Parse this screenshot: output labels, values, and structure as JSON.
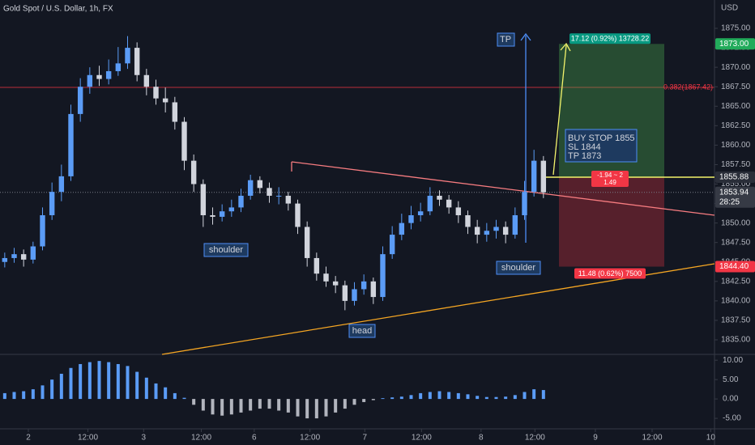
{
  "chart_data": {
    "type": "candlestick",
    "title": "Gold Spot / U.S. Dollar, 1h, FX",
    "currency": "USD",
    "up_color": "#5b9cf6",
    "down_color": "#d1d4dc",
    "candles": [
      [
        1845,
        1846.2,
        1844.3,
        1845.5
      ],
      [
        1845.5,
        1846.8,
        1844.9,
        1846
      ],
      [
        1846,
        1846.6,
        1844.4,
        1845.3
      ],
      [
        1845.3,
        1847.6,
        1844.8,
        1847
      ],
      [
        1847,
        1852,
        1846.5,
        1851
      ],
      [
        1851,
        1855.2,
        1850.4,
        1854
      ],
      [
        1854,
        1857.5,
        1852.8,
        1856
      ],
      [
        1856,
        1865.2,
        1855.4,
        1864
      ],
      [
        1864,
        1868.6,
        1863,
        1867.5
      ],
      [
        1867.5,
        1870,
        1866.6,
        1869
      ],
      [
        1869,
        1870.2,
        1867.6,
        1868.5
      ],
      [
        1868.5,
        1871,
        1867.8,
        1869.5
      ],
      [
        1869.5,
        1872.6,
        1868.9,
        1870.5
      ],
      [
        1870.5,
        1874,
        1869.8,
        1872.5
      ],
      [
        1872.5,
        1873.2,
        1868.2,
        1869
      ],
      [
        1869,
        1869.8,
        1866.4,
        1867.5
      ],
      [
        1867.5,
        1868.4,
        1865.2,
        1866
      ],
      [
        1866,
        1867.4,
        1864.2,
        1865.5
      ],
      [
        1865.5,
        1866.2,
        1862,
        1863
      ],
      [
        1863,
        1863.6,
        1856.8,
        1858
      ],
      [
        1858,
        1858.8,
        1854,
        1855
      ],
      [
        1855,
        1855.6,
        1849.5,
        1851
      ],
      [
        1851,
        1852,
        1849.8,
        1850.8
      ],
      [
        1850.8,
        1852.4,
        1850.2,
        1851.5
      ],
      [
        1851.5,
        1853,
        1850.8,
        1852
      ],
      [
        1852,
        1854.4,
        1851.4,
        1853.5
      ],
      [
        1853.5,
        1856.2,
        1853,
        1855.5
      ],
      [
        1855.5,
        1856,
        1853.8,
        1854.5
      ],
      [
        1854.5,
        1855.2,
        1852.6,
        1853.5
      ],
      [
        1853.5,
        1854.6,
        1852.4,
        1853.5
      ],
      [
        1853.5,
        1854,
        1851.6,
        1852.5
      ],
      [
        1852.5,
        1853,
        1848.6,
        1849.5
      ],
      [
        1849.5,
        1850.2,
        1844.4,
        1845.5
      ],
      [
        1845.5,
        1846.2,
        1842.6,
        1843.5
      ],
      [
        1843.5,
        1844.4,
        1841.8,
        1842.5
      ],
      [
        1842.5,
        1843.2,
        1841,
        1842
      ],
      [
        1842,
        1842.6,
        1838.8,
        1840
      ],
      [
        1840,
        1842.4,
        1839.4,
        1841.5
      ],
      [
        1841.5,
        1843.4,
        1840.8,
        1842.5
      ],
      [
        1842.5,
        1843,
        1839.6,
        1840.5
      ],
      [
        1840.5,
        1847,
        1840,
        1846
      ],
      [
        1846,
        1849.6,
        1845.4,
        1848.5
      ],
      [
        1848.5,
        1851.2,
        1847.8,
        1850
      ],
      [
        1850,
        1852.2,
        1849.2,
        1851
      ],
      [
        1851,
        1852.6,
        1850.2,
        1851.5
      ],
      [
        1851.5,
        1854.6,
        1851,
        1853.5
      ],
      [
        1853.5,
        1854.2,
        1852.2,
        1853
      ],
      [
        1853,
        1853.6,
        1851.2,
        1852
      ],
      [
        1852,
        1852.8,
        1850,
        1851
      ],
      [
        1851,
        1851.6,
        1848.6,
        1849.5
      ],
      [
        1849.5,
        1850.4,
        1847.4,
        1848.5
      ],
      [
        1848.5,
        1850,
        1847.6,
        1849
      ],
      [
        1849,
        1850.4,
        1848,
        1849.5
      ],
      [
        1849.5,
        1850.2,
        1847.4,
        1848.5
      ],
      [
        1848.5,
        1852,
        1848,
        1851
      ],
      [
        1851,
        1855.4,
        1850.4,
        1854
      ],
      [
        1854,
        1859.4,
        1853.4,
        1858
      ],
      [
        1858,
        1858.6,
        1853.2,
        1853.94
      ]
    ],
    "oscillator": {
      "pos_color": "#5b9cf6",
      "neg_color": "#b2b5be",
      "values": [
        1.5,
        1.8,
        2,
        2.5,
        3.5,
        5,
        6.5,
        8,
        9,
        9.5,
        9.8,
        9.5,
        9,
        8.5,
        7,
        5.5,
        4,
        3,
        1.5,
        0.3,
        -1.5,
        -3,
        -4,
        -4.3,
        -4,
        -3.5,
        -3,
        -2.5,
        -2.5,
        -3,
        -3.5,
        -4.5,
        -5,
        -5,
        -4.5,
        -3.5,
        -2.5,
        -1.5,
        -0.8,
        -0.3,
        0.2,
        0.4,
        0.6,
        1,
        1.5,
        1.8,
        2,
        1.8,
        1.5,
        1.2,
        0.8,
        0.5,
        0.5,
        0.6,
        1,
        1.8,
        2.5,
        2.3
      ]
    },
    "xlim": [
      -0.5,
      75.1
    ],
    "xticks": [
      {
        "value": 2.5,
        "label": "2"
      },
      {
        "value": 8.8,
        "label": "12:00"
      },
      {
        "value": 14.7,
        "label": "3"
      },
      {
        "value": 20.8,
        "label": "12:00"
      },
      {
        "value": 26.4,
        "label": "6"
      },
      {
        "value": 32.3,
        "label": "12:00"
      },
      {
        "value": 38.1,
        "label": "7"
      },
      {
        "value": 44.1,
        "label": "12:00"
      },
      {
        "value": 50.4,
        "label": "8"
      },
      {
        "value": 56.1,
        "label": "12:00"
      },
      {
        "value": 62.5,
        "label": "9"
      },
      {
        "value": 68.5,
        "label": "12:00"
      },
      {
        "value": 74.7,
        "label": "10"
      }
    ],
    "ylim": [
      1833.13,
      1878.64
    ],
    "yticks": [
      {
        "value": 1835,
        "label": "1835.00"
      },
      {
        "value": 1837.5,
        "label": "1837.50"
      },
      {
        "value": 1840,
        "label": "1840.00"
      },
      {
        "value": 1842.5,
        "label": "1842.50"
      },
      {
        "value": 1845,
        "label": "1845.00"
      },
      {
        "value": 1847.5,
        "label": "1847.50"
      },
      {
        "value": 1850,
        "label": "1850.00"
      },
      {
        "value": 1852.5,
        "label": "1852.50"
      },
      {
        "value": 1855,
        "label": "1855.00"
      },
      {
        "value": 1857.5,
        "label": "1857.50"
      },
      {
        "value": 1860,
        "label": "1860.00"
      },
      {
        "value": 1862.5,
        "label": "1862.50"
      },
      {
        "value": 1865,
        "label": "1865.00"
      },
      {
        "value": 1867.5,
        "label": "1867.50"
      },
      {
        "value": 1870,
        "label": "1870.00"
      },
      {
        "value": 1872.5,
        "label": "1872.50"
      },
      {
        "value": 1875,
        "label": "1875.00"
      }
    ],
    "y2lim": [
      -7.7,
      11.5
    ],
    "y2ticks": [
      {
        "value": 10,
        "label": "10.00"
      },
      {
        "value": 5,
        "label": "5.00"
      },
      {
        "value": 0,
        "label": "0.00"
      },
      {
        "value": -5,
        "label": "-5.00"
      }
    ],
    "grid": false,
    "fib": {
      "value": 1867.42,
      "label": "0.382(1867.42)"
    },
    "position": {
      "target": {
        "value": 1873,
        "label": "1873.00"
      },
      "entry": {
        "value": 1855.88,
        "label": "1855.88"
      },
      "stop": {
        "value": 1844.4,
        "label": "1844.40"
      },
      "target_text": "17.12 (0.92%) 13728.22",
      "stop_text": "11.48 (0.62%) 7500",
      "pnl_text": "-1.94 ~ 2",
      "rr_text": "1.49"
    },
    "last": {
      "value": 1853.94,
      "label": "1853.94"
    },
    "countdown": "28:25",
    "annotations": [
      "shoulder",
      "shoulder",
      "head",
      "TP",
      "BUY STOP 1855",
      "SL 1844",
      "TP 1873"
    ]
  }
}
